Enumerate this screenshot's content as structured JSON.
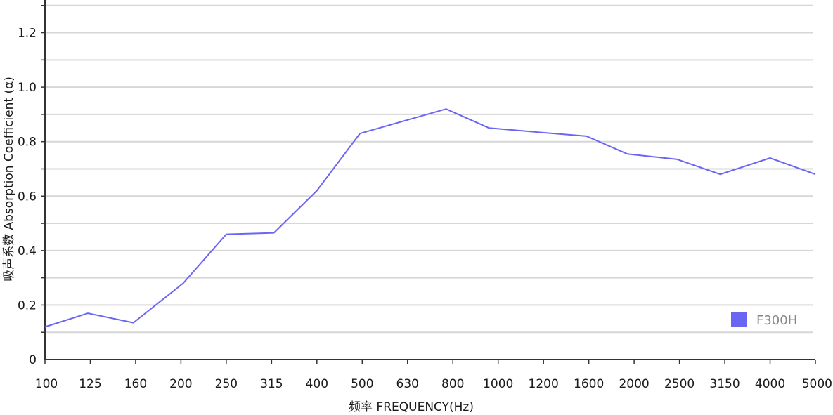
{
  "chart_data": {
    "type": "line",
    "xlabel": "频率 FREQUENCY(Hz)",
    "ylabel": "吸声系数 Absorption Coefficient (α)",
    "categories": [
      "100",
      "125",
      "160",
      "200",
      "250",
      "315",
      "400",
      "500",
      "630",
      "800",
      "1000",
      "1200",
      "1600",
      "2000",
      "2500",
      "3150",
      "4000",
      "5000"
    ],
    "y_ticks": [
      "0",
      "0.2",
      "0.4",
      "0.6",
      "0.8",
      "1.0",
      "1.2"
    ],
    "ylim": [
      0,
      1.32
    ],
    "grid": true,
    "legend_position": "bottom-right",
    "series": [
      {
        "name": "F300H",
        "color": "#6b66f2",
        "points": [
          {
            "x": 0.0,
            "y": 0.12
          },
          {
            "x": 0.95,
            "y": 0.17
          },
          {
            "x": 1.95,
            "y": 0.135
          },
          {
            "x": 3.05,
            "y": 0.28
          },
          {
            "x": 4.0,
            "y": 0.46
          },
          {
            "x": 5.05,
            "y": 0.465
          },
          {
            "x": 6.0,
            "y": 0.62
          },
          {
            "x": 6.95,
            "y": 0.83
          },
          {
            "x": 8.85,
            "y": 0.92
          },
          {
            "x": 9.8,
            "y": 0.85
          },
          {
            "x": 10.85,
            "y": 0.835
          },
          {
            "x": 11.95,
            "y": 0.82
          },
          {
            "x": 12.85,
            "y": 0.755
          },
          {
            "x": 13.95,
            "y": 0.735
          },
          {
            "x": 14.9,
            "y": 0.68
          },
          {
            "x": 16.0,
            "y": 0.74
          },
          {
            "x": 17.0,
            "y": 0.68
          }
        ]
      }
    ]
  },
  "colors": {
    "grid": "#d6d6d6",
    "axis": "#333333",
    "series": "#6b66f2",
    "legend_text": "#888888"
  }
}
